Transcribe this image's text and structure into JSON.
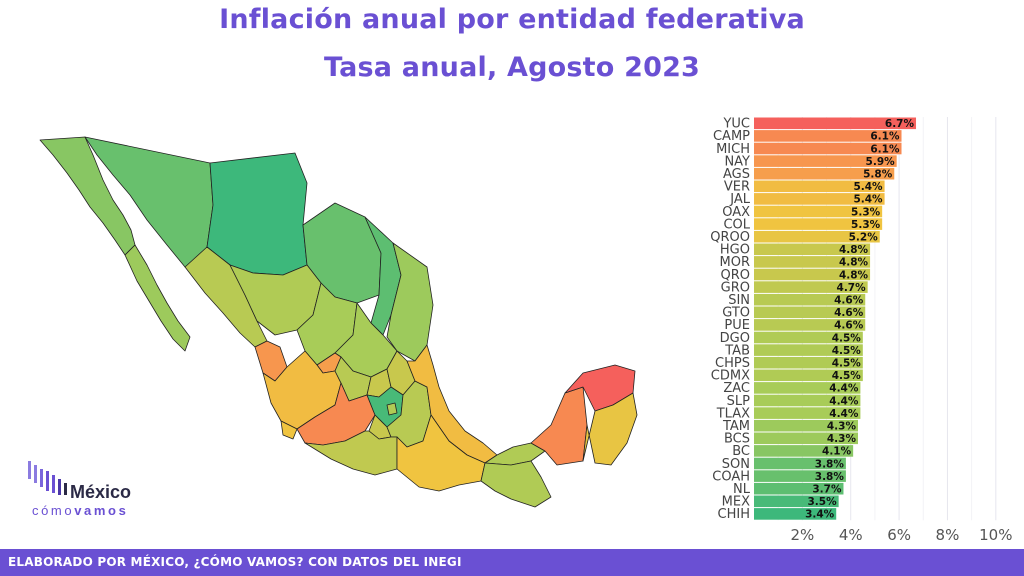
{
  "title_line1": "Inflación anual por entidad federativa",
  "title_line2": "Tasa anual, Agosto 2023",
  "footer": "ELABORADO POR MÉXICO, ¿CÓMO VAMOS? CON DATOS DEL INEGI",
  "logo": {
    "line1": "México",
    "line2a": "cómo",
    "line2b": "vamos"
  },
  "colors": {
    "accent": "#6a50d3",
    "footer_bg": "#6a50d3",
    "low": "#3db87b",
    "high": "#f5605c"
  },
  "chart_data": [
    {
      "type": "bar",
      "orientation": "horizontal",
      "categories": [
        "YUC",
        "CAMP",
        "MICH",
        "NAY",
        "AGS",
        "VER",
        "JAL",
        "OAX",
        "COL",
        "QROO",
        "HGO",
        "MOR",
        "QRO",
        "GRO",
        "SIN",
        "GTO",
        "PUE",
        "DGO",
        "TAB",
        "CHPS",
        "CDMX",
        "ZAC",
        "SLP",
        "TLAX",
        "TAM",
        "BCS",
        "BC",
        "SON",
        "COAH",
        "NL",
        "MEX",
        "CHIH"
      ],
      "values": [
        6.7,
        6.1,
        6.1,
        5.9,
        5.8,
        5.4,
        5.4,
        5.3,
        5.3,
        5.2,
        4.8,
        4.8,
        4.8,
        4.7,
        4.6,
        4.6,
        4.6,
        4.5,
        4.5,
        4.5,
        4.5,
        4.4,
        4.4,
        4.4,
        4.3,
        4.3,
        4.1,
        3.8,
        3.8,
        3.7,
        3.5,
        3.4
      ],
      "data_labels": [
        "6.7%",
        "6.1%",
        "6.1%",
        "5.9%",
        "5.8%",
        "5.4%",
        "5.4%",
        "5.3%",
        "5.3%",
        "5.2%",
        "4.8%",
        "4.8%",
        "4.8%",
        "4.7%",
        "4.6%",
        "4.6%",
        "4.6%",
        "4.5%",
        "4.5%",
        "4.5%",
        "4.5%",
        "4.4%",
        "4.4%",
        "4.4%",
        "4.3%",
        "4.3%",
        "4.1%",
        "3.8%",
        "3.8%",
        "3.7%",
        "3.5%",
        "3.4%"
      ],
      "x_ticks": [
        "2%",
        "4%",
        "6%",
        "8%",
        "10%"
      ],
      "x_tick_values": [
        2,
        4,
        6,
        8,
        10
      ],
      "xlim": [
        0,
        11
      ],
      "grid": true
    },
    {
      "type": "choropleth",
      "regions": [
        "YUC",
        "CAMP",
        "MICH",
        "NAY",
        "AGS",
        "VER",
        "JAL",
        "OAX",
        "COL",
        "QROO",
        "HGO",
        "MOR",
        "QRO",
        "GRO",
        "SIN",
        "GTO",
        "PUE",
        "DGO",
        "TAB",
        "CHPS",
        "CDMX",
        "ZAC",
        "SLP",
        "TLAX",
        "TAM",
        "BCS",
        "BC",
        "SON",
        "COAH",
        "NL",
        "MEX",
        "CHIH"
      ],
      "values": [
        6.7,
        6.1,
        6.1,
        5.9,
        5.8,
        5.4,
        5.4,
        5.3,
        5.3,
        5.2,
        4.8,
        4.8,
        4.8,
        4.7,
        4.6,
        4.6,
        4.6,
        4.5,
        4.5,
        4.5,
        4.5,
        4.4,
        4.4,
        4.4,
        4.3,
        4.3,
        4.1,
        3.8,
        3.8,
        3.7,
        3.5,
        3.4
      ]
    }
  ]
}
